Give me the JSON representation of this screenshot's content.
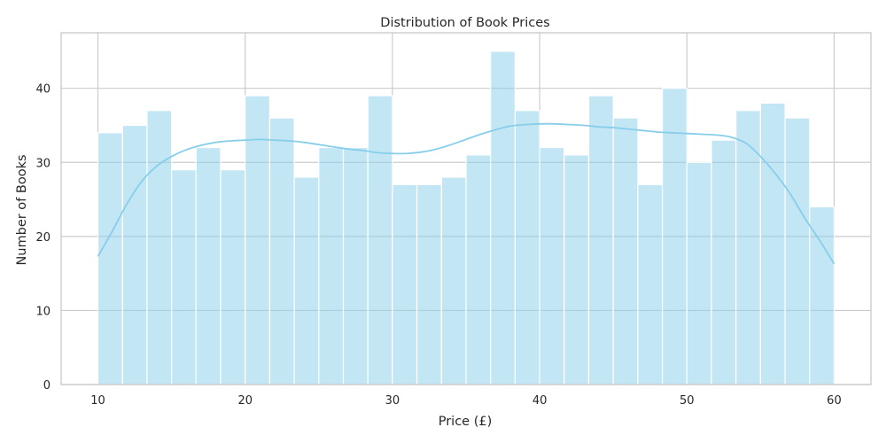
{
  "chart_data": {
    "type": "bar",
    "title": "Distribution of Book Prices",
    "xlabel": "Price (£)",
    "ylabel": "Number of Books",
    "x_range": [
      10,
      60
    ],
    "xlim": [
      7.5,
      62.5
    ],
    "ylim": [
      0,
      47.5
    ],
    "x_ticks": [
      10,
      20,
      30,
      40,
      50,
      60
    ],
    "y_ticks": [
      0,
      10,
      20,
      30,
      40
    ],
    "grid": true,
    "bin_edges": [
      10,
      11.667,
      13.333,
      15,
      16.667,
      18.333,
      20,
      21.667,
      23.333,
      25,
      26.667,
      28.333,
      30,
      31.667,
      33.333,
      35,
      36.667,
      38.333,
      40,
      41.667,
      43.333,
      45,
      46.667,
      48.333,
      50,
      51.667,
      53.333,
      55,
      56.667,
      58.333,
      60
    ],
    "values": [
      34,
      35,
      37,
      29,
      32,
      29,
      39,
      36,
      28,
      32,
      32,
      39,
      27,
      27,
      28,
      31,
      45,
      37,
      32,
      31,
      39,
      36,
      27,
      40,
      30,
      33,
      37,
      38,
      36,
      24
    ],
    "kde": {
      "x": [
        10,
        11,
        12,
        13,
        14,
        15,
        16,
        17,
        18,
        19,
        20,
        21,
        22,
        23,
        24,
        25,
        26,
        27,
        28,
        29,
        30,
        31,
        32,
        33,
        34,
        35,
        36,
        37,
        38,
        39,
        40,
        41,
        42,
        43,
        44,
        45,
        46,
        47,
        48,
        49,
        50,
        51,
        52,
        53,
        54,
        55,
        56,
        57,
        58,
        59,
        60
      ],
      "y": [
        17.3,
        20.8,
        24.5,
        27.5,
        29.5,
        30.8,
        31.7,
        32.3,
        32.7,
        32.9,
        33.0,
        33.1,
        33.0,
        32.9,
        32.7,
        32.4,
        32.1,
        31.8,
        31.6,
        31.3,
        31.2,
        31.2,
        31.4,
        31.8,
        32.4,
        33.1,
        33.8,
        34.4,
        34.9,
        35.1,
        35.2,
        35.2,
        35.1,
        35.0,
        34.8,
        34.7,
        34.5,
        34.3,
        34.1,
        34.0,
        33.9,
        33.8,
        33.7,
        33.4,
        32.6,
        30.8,
        28.5,
        25.8,
        22.5,
        19.5,
        16.3
      ]
    },
    "colors": {
      "bar_fill": "#87ceeb",
      "bar_opacity": 0.5,
      "bar_edge": "#ffffff",
      "kde_line": "#87ceeb",
      "grid": "#cccccc",
      "spine": "#cccccc",
      "text": "#262626"
    }
  }
}
